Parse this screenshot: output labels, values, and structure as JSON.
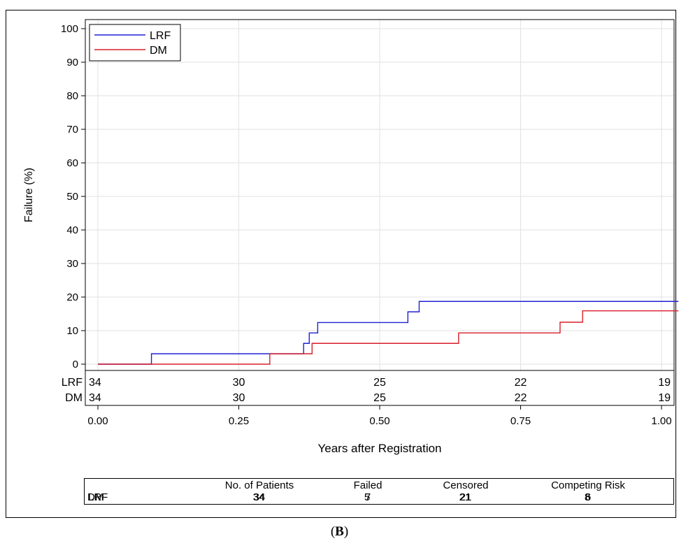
{
  "panel_label": {
    "open": "(",
    "letter": "B",
    "close": ")"
  },
  "chart_data": {
    "type": "line",
    "step": true,
    "xlabel": "Years after Registration",
    "ylabel": "Failure (%)",
    "xlim": [
      0,
      1.03
    ],
    "ylim": [
      0,
      100
    ],
    "x_ticks": [
      "0.00",
      "0.25",
      "0.50",
      "0.75",
      "1.00"
    ],
    "x_tick_values": [
      0,
      0.25,
      0.5,
      0.75,
      1.0
    ],
    "y_ticks": [
      0,
      10,
      20,
      30,
      40,
      50,
      60,
      70,
      80,
      90,
      100
    ],
    "grid": true,
    "legend_position": "top-left",
    "series": [
      {
        "name": "LRF",
        "color": "#2020d8",
        "x": [
          0,
          0.095,
          0.365,
          0.375,
          0.39,
          0.55,
          0.57,
          1.03
        ],
        "y": [
          0,
          3.1,
          6.2,
          9.3,
          12.4,
          15.6,
          18.7,
          18.7
        ]
      },
      {
        "name": "DM",
        "color": "#d81e2a",
        "x": [
          0,
          0.305,
          0.38,
          0.64,
          0.82,
          0.86,
          1.03
        ],
        "y": [
          0,
          3.1,
          6.2,
          9.3,
          12.5,
          15.9,
          15.9
        ]
      }
    ],
    "at_risk": {
      "rows": [
        {
          "label": "LRF",
          "values": [
            "34",
            "30",
            "25",
            "22",
            "19"
          ]
        },
        {
          "label": "DM",
          "values": [
            "34",
            "30",
            "25",
            "22",
            "19"
          ]
        }
      ]
    },
    "summary_table": {
      "headers": [
        "No. of Patients",
        "Failed",
        "Censored",
        "Competing Risk"
      ],
      "rows": [
        {
          "label": "LRF",
          "values": [
            "34",
            "7",
            "21",
            "6"
          ]
        },
        {
          "label": "DM",
          "values": [
            "34",
            "5",
            "21",
            "8"
          ]
        }
      ]
    }
  }
}
